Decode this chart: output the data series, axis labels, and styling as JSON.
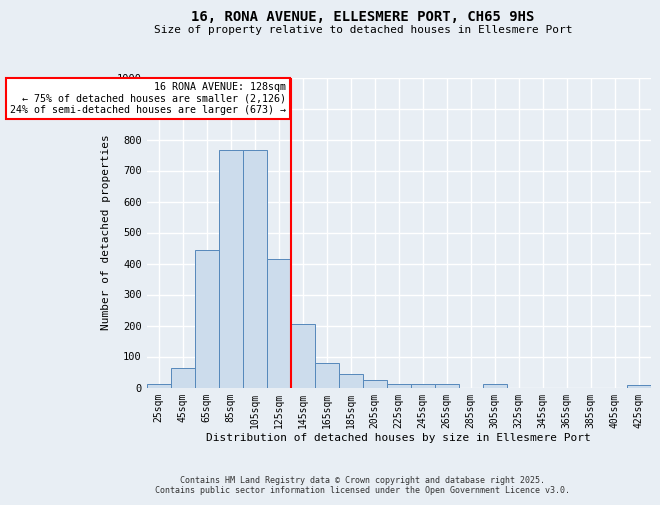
{
  "title1": "16, RONA AVENUE, ELLESMERE PORT, CH65 9HS",
  "title2": "Size of property relative to detached houses in Ellesmere Port",
  "xlabel": "Distribution of detached houses by size in Ellesmere Port",
  "ylabel": "Number of detached properties",
  "categories": [
    "25sqm",
    "45sqm",
    "65sqm",
    "85sqm",
    "105sqm",
    "125sqm",
    "145sqm",
    "165sqm",
    "185sqm",
    "205sqm",
    "225sqm",
    "245sqm",
    "265sqm",
    "285sqm",
    "305sqm",
    "325sqm",
    "345sqm",
    "365sqm",
    "385sqm",
    "405sqm",
    "425sqm"
  ],
  "values": [
    10,
    63,
    445,
    765,
    765,
    415,
    205,
    78,
    45,
    25,
    10,
    10,
    10,
    0,
    10,
    0,
    0,
    0,
    0,
    0,
    8
  ],
  "bar_color": "#ccdcec",
  "bar_edge_color": "#5588bb",
  "red_line_x": 5.5,
  "annotation_title": "16 RONA AVENUE: 128sqm",
  "annotation_line1": "← 75% of detached houses are smaller (2,126)",
  "annotation_line2": "24% of semi-detached houses are larger (673) →",
  "ylim": [
    0,
    1000
  ],
  "yticks": [
    0,
    100,
    200,
    300,
    400,
    500,
    600,
    700,
    800,
    900,
    1000
  ],
  "background_color": "#e8eef4",
  "grid_color": "#ffffff",
  "footer1": "Contains HM Land Registry data © Crown copyright and database right 2025.",
  "footer2": "Contains public sector information licensed under the Open Government Licence v3.0."
}
